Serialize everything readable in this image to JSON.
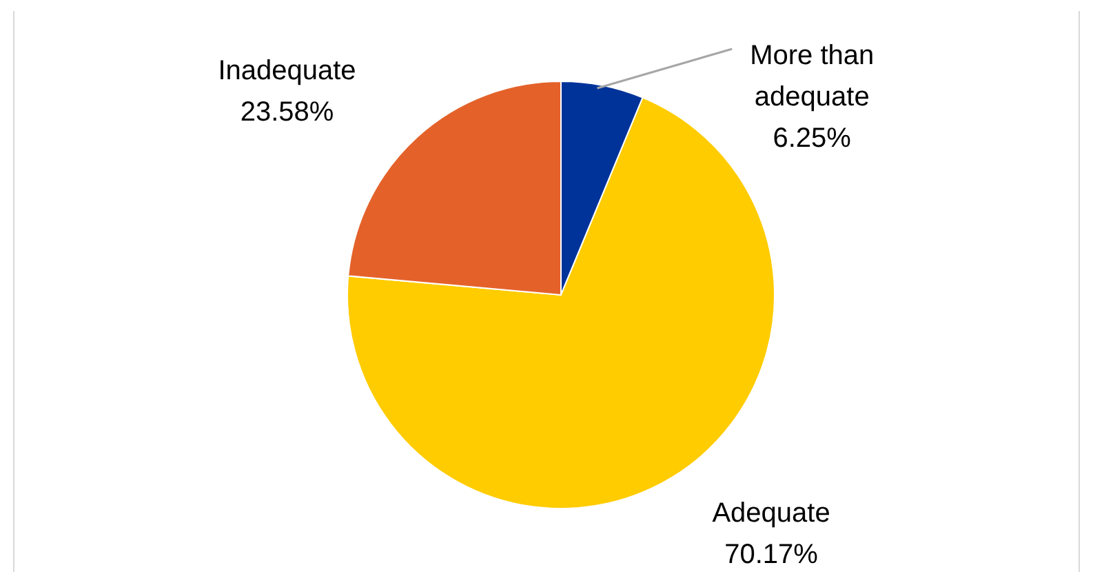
{
  "chart_data": {
    "type": "pie",
    "categories": [
      "More than adequate",
      "Adequate",
      "Inadequate"
    ],
    "values": [
      6.25,
      70.17,
      23.58
    ],
    "colors": [
      "#003399",
      "#ffcc00",
      "#e4622a"
    ],
    "value_labels": [
      "6.25%",
      "70.17%",
      "23.58%"
    ]
  }
}
